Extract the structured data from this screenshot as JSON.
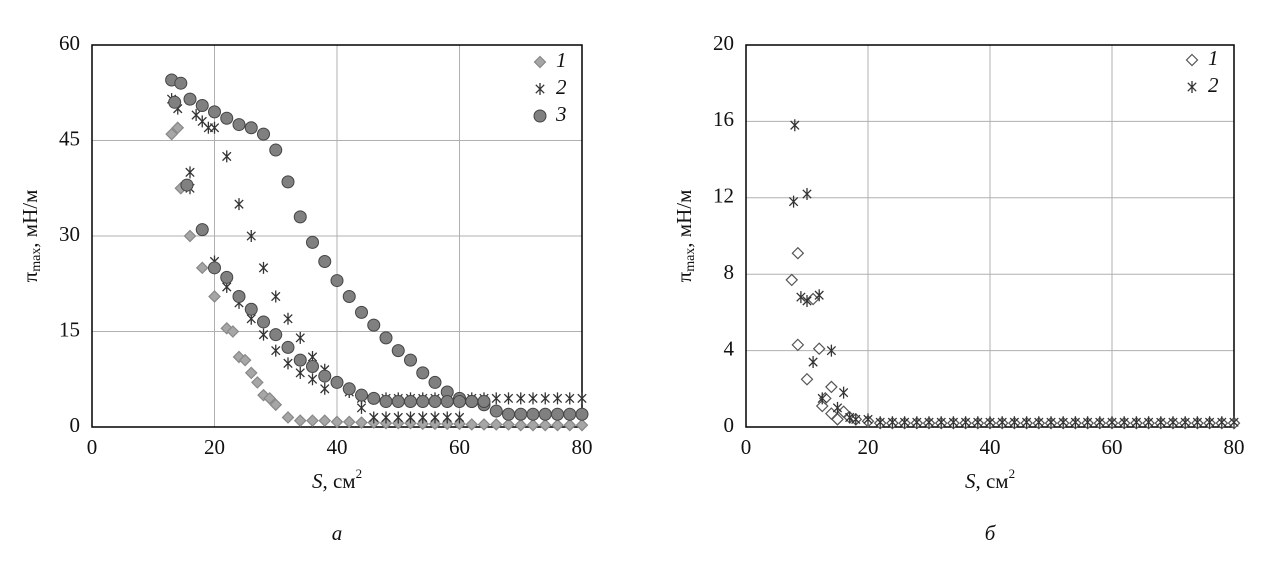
{
  "chart_data": [
    {
      "type": "scatter",
      "panel_label": "а",
      "xlabel": [
        "S",
        ", см",
        "2"
      ],
      "ylabel": [
        "π",
        "max",
        ", мН/м"
      ],
      "xlim": [
        0,
        80
      ],
      "ylim": [
        0,
        60
      ],
      "xticks": [
        0,
        20,
        40,
        60,
        80
      ],
      "yticks": [
        0,
        15,
        30,
        45,
        60
      ],
      "grid": true,
      "legend": "upper right",
      "series": [
        {
          "name": "1",
          "marker": "diamond",
          "color": "#a6a6a6",
          "filled": true,
          "x": [
            13,
            14,
            14.5,
            16,
            18,
            20,
            22,
            23,
            24,
            25,
            26,
            27,
            28,
            29,
            30,
            32,
            34,
            36,
            38,
            40,
            42,
            44,
            46,
            48,
            50,
            52,
            54,
            56,
            58,
            60,
            62,
            64,
            66,
            68,
            70,
            72,
            74,
            76,
            78,
            80
          ],
          "values": [
            46,
            47,
            37.5,
            30,
            25,
            20.5,
            15.5,
            15,
            11,
            10.5,
            8.5,
            7,
            5,
            4.5,
            3.5,
            1.5,
            1,
            1,
            1,
            0.8,
            0.8,
            0.7,
            0.7,
            0.6,
            0.6,
            0.6,
            0.5,
            0.5,
            0.5,
            0.5,
            0.4,
            0.4,
            0.4,
            0.4,
            0.3,
            0.3,
            0.3,
            0.3,
            0.3,
            0.3
          ]
        },
        {
          "name": "2",
          "marker": "asterisk",
          "color": "#333333",
          "filled": true,
          "x": [
            13,
            14,
            16,
            16,
            17,
            18,
            19,
            20,
            20,
            22,
            22,
            24,
            24,
            26,
            26,
            28,
            28,
            30,
            30,
            32,
            32,
            34,
            34,
            36,
            36,
            38,
            38,
            40,
            42,
            44,
            44,
            46,
            48,
            50,
            52,
            54,
            56,
            58,
            60,
            62,
            64,
            66,
            68,
            70,
            72,
            74,
            76,
            78,
            80,
            46,
            48,
            50,
            52,
            54,
            56,
            58,
            60
          ],
          "values": [
            51.5,
            50,
            40,
            37.5,
            49,
            48,
            47,
            47,
            26,
            42.5,
            22,
            35,
            19.5,
            30,
            17,
            25,
            14.5,
            20.5,
            12,
            17,
            10,
            14,
            8.5,
            11,
            7.5,
            9,
            6,
            7,
            5.5,
            4.5,
            3,
            4.5,
            4.5,
            4.5,
            4.5,
            4.5,
            4.5,
            4.5,
            4.5,
            4.5,
            4.5,
            4.5,
            4.5,
            4.5,
            4.5,
            4.5,
            4.5,
            4.5,
            4.5,
            1.5,
            1.5,
            1.5,
            1.5,
            1.5,
            1.5,
            1.5,
            1.5
          ]
        },
        {
          "name": "3",
          "marker": "circle",
          "color": "#808080",
          "filled": true,
          "x": [
            13,
            14.5,
            13.5,
            16,
            18,
            20,
            22,
            24,
            26,
            28,
            30,
            32,
            34,
            36,
            38,
            40,
            42,
            44,
            46,
            48,
            50,
            52,
            54,
            56,
            58,
            60,
            62,
            64,
            66,
            68,
            70,
            72,
            74,
            76,
            78,
            80,
            15.5,
            18,
            20,
            22,
            24,
            26,
            28,
            30,
            32,
            34,
            36,
            38,
            40,
            42,
            44,
            46,
            48,
            50,
            52,
            54,
            56,
            58,
            60,
            62,
            64
          ],
          "values": [
            54.5,
            54,
            51,
            51.5,
            50.5,
            49.5,
            48.5,
            47.5,
            47,
            46,
            43.5,
            38.5,
            33,
            29,
            26,
            23,
            20.5,
            18,
            16,
            14,
            12,
            10.5,
            8.5,
            7,
            5.5,
            4.5,
            4,
            3.5,
            2.5,
            2,
            2,
            2,
            2,
            2,
            2,
            2,
            38,
            31,
            25,
            23.5,
            20.5,
            18.5,
            16.5,
            14.5,
            12.5,
            10.5,
            9.5,
            8,
            7,
            6,
            5,
            4.5,
            4,
            4,
            4,
            4,
            4,
            4,
            4,
            4,
            4
          ]
        }
      ]
    },
    {
      "type": "scatter",
      "panel_label": "б",
      "xlabel": [
        "S",
        ", см",
        "2"
      ],
      "ylabel": [
        "π",
        "max",
        ", мН/м"
      ],
      "xlim": [
        0,
        80
      ],
      "ylim": [
        0,
        20
      ],
      "xticks": [
        0,
        20,
        40,
        60,
        80
      ],
      "yticks": [
        0,
        4,
        8,
        12,
        16,
        20
      ],
      "grid": true,
      "legend": "upper right",
      "series": [
        {
          "name": "1",
          "marker": "diamond",
          "color": "#555555",
          "filled": false,
          "x": [
            7.5,
            8.5,
            8.5,
            10,
            11,
            12,
            12.5,
            13,
            14,
            14,
            15,
            16,
            17,
            18,
            20,
            22,
            24,
            26,
            28,
            30,
            32,
            34,
            36,
            38,
            40,
            42,
            44,
            46,
            48,
            50,
            52,
            54,
            56,
            58,
            60,
            62,
            64,
            66,
            68,
            70,
            72,
            74,
            76,
            78,
            80
          ],
          "values": [
            7.7,
            9.1,
            4.3,
            2.5,
            6.7,
            4.1,
            1.1,
            1.5,
            2.1,
            0.7,
            0.4,
            0.8,
            0.5,
            0.4,
            0.3,
            0.2,
            0.2,
            0.2,
            0.2,
            0.2,
            0.2,
            0.2,
            0.2,
            0.2,
            0.2,
            0.2,
            0.2,
            0.2,
            0.2,
            0.2,
            0.2,
            0.2,
            0.2,
            0.2,
            0.2,
            0.2,
            0.2,
            0.2,
            0.2,
            0.2,
            0.2,
            0.2,
            0.2,
            0.2,
            0.2
          ]
        },
        {
          "name": "2",
          "marker": "asterisk",
          "color": "#333333",
          "filled": true,
          "x": [
            8,
            7.8,
            9,
            10,
            10,
            11,
            12,
            12.5,
            14,
            15,
            16,
            17,
            18,
            20,
            22,
            24,
            26,
            28,
            30,
            32,
            34,
            36,
            38,
            40,
            42,
            44,
            46,
            48,
            50,
            52,
            54,
            56,
            58,
            60,
            62,
            64,
            66,
            68,
            70,
            72,
            74,
            76,
            78,
            80
          ],
          "values": [
            15.8,
            11.8,
            6.8,
            12.2,
            6.6,
            3.4,
            6.9,
            1.5,
            4,
            1,
            1.8,
            0.5,
            0.4,
            0.4,
            0.25,
            0.25,
            0.25,
            0.25,
            0.25,
            0.25,
            0.25,
            0.25,
            0.25,
            0.25,
            0.25,
            0.25,
            0.25,
            0.25,
            0.25,
            0.25,
            0.25,
            0.25,
            0.25,
            0.25,
            0.25,
            0.25,
            0.25,
            0.25,
            0.25,
            0.25,
            0.25,
            0.25,
            0.25,
            0.25
          ]
        }
      ]
    }
  ]
}
